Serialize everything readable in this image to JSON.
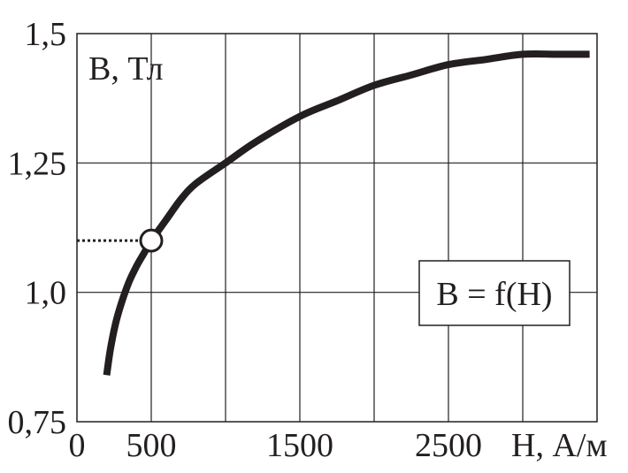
{
  "chart_data": {
    "type": "line",
    "title": "",
    "xlabel": "H, А/м",
    "ylabel": "B, Тл",
    "xlim": [
      0,
      3500
    ],
    "ylim": [
      0.75,
      1.5
    ],
    "x_ticks": [
      0,
      500,
      1500,
      2500
    ],
    "x_tick_labels": [
      "0",
      "500",
      "1500",
      "2500"
    ],
    "y_ticks": [
      0.75,
      1.0,
      1.25,
      1.5
    ],
    "y_tick_labels": [
      "0,75",
      "1,0",
      "1,25",
      "1,5"
    ],
    "x_gridlines": [
      500,
      1000,
      1500,
      2000,
      2500,
      3000
    ],
    "y_gridlines": [
      1.0,
      1.25
    ],
    "grid": true,
    "legend_box": "B = f(H)",
    "legend_placement": "right",
    "series": [
      {
        "x": [
          200,
          225,
          260,
          300,
          350,
          400,
          450,
          500,
          600,
          700,
          800,
          1000,
          1200,
          1500,
          1750,
          2000,
          2250,
          2500,
          2750,
          3000,
          3250,
          3450
        ],
        "y": [
          0.84,
          0.89,
          0.94,
          0.98,
          1.02,
          1.05,
          1.075,
          1.1,
          1.14,
          1.18,
          1.21,
          1.25,
          1.29,
          1.34,
          1.37,
          1.4,
          1.42,
          1.44,
          1.45,
          1.46,
          1.46,
          1.46
        ]
      }
    ],
    "marked_point": {
      "x": 500,
      "y": 1.1
    }
  },
  "colors": {
    "curve": "#231f20",
    "grid": "#231f20",
    "marker_fill": "#ffffff"
  }
}
